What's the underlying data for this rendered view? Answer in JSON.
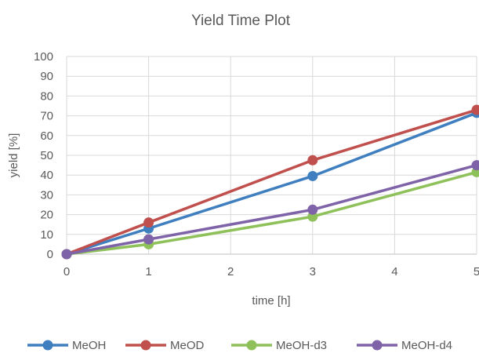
{
  "chart_data": {
    "type": "line",
    "title": "Yield Time Plot",
    "xlabel": "time [h]",
    "ylabel": "yield [%]",
    "xlim": [
      0,
      5
    ],
    "ylim": [
      0,
      100
    ],
    "x_ticks": [
      "0",
      "1",
      "2",
      "3",
      "4",
      "5"
    ],
    "y_ticks": [
      "0",
      "10",
      "20",
      "30",
      "40",
      "50",
      "60",
      "70",
      "80",
      "90",
      "100"
    ],
    "grid": true,
    "legend_position": "bottom",
    "x": [
      0,
      1,
      3,
      5
    ],
    "series": [
      {
        "name": "MeOH",
        "color": "#3F7FBF",
        "values": [
          0,
          13,
          39.5,
          71.5
        ]
      },
      {
        "name": "MeOD",
        "color": "#C0504D",
        "values": [
          0,
          16,
          47.5,
          73
        ]
      },
      {
        "name": "MeOH-d3",
        "color": "#8FC15A",
        "values": [
          0,
          5,
          19,
          41.5
        ]
      },
      {
        "name": "MeOH-d4",
        "color": "#7F63A8",
        "values": [
          0,
          7.5,
          22.5,
          45
        ]
      }
    ]
  }
}
